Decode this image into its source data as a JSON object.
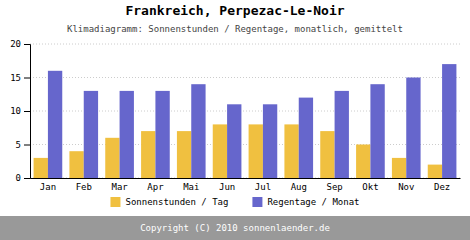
{
  "chart_data": {
    "type": "bar",
    "title": "Frankreich, Perpezac-Le-Noir",
    "subtitle": "Klimadiagramm: Sonnenstunden / Regentage, monatlich, gemittelt",
    "categories": [
      "Jan",
      "Feb",
      "Mar",
      "Apr",
      "Mai",
      "Jun",
      "Jul",
      "Aug",
      "Sep",
      "Okt",
      "Nov",
      "Dez"
    ],
    "series": [
      {
        "name": "Sonnenstunden / Tag",
        "color": "#f0c040",
        "values": [
          3,
          4,
          6,
          7,
          7,
          8,
          8,
          8,
          7,
          5,
          3,
          2
        ]
      },
      {
        "name": "Regentage / Monat",
        "color": "#6666cc",
        "values": [
          16,
          13,
          13,
          13,
          14,
          11,
          11,
          12,
          13,
          14,
          15,
          17
        ]
      }
    ],
    "ylim": [
      0,
      20
    ],
    "yticks": [
      0,
      5,
      10,
      15,
      20
    ],
    "grid": true,
    "legend": "bottom",
    "annotations": [
      "Copyright (C) 2010 sonnenlaender.de"
    ]
  }
}
